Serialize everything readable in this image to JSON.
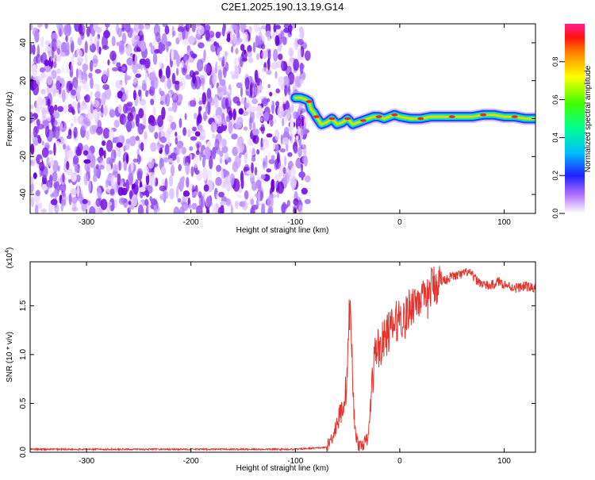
{
  "title": "C2E1.2025.190.13.19.G14",
  "colors": {
    "snr_line": "#e8322c",
    "spectrogram_noise": "#7000e0",
    "axis": "#000000"
  },
  "chart_data": [
    {
      "type": "heatmap",
      "xlabel": "Height of straight line (km)",
      "ylabel": "Frequency (Hz)",
      "xlim": [
        -354,
        130
      ],
      "ylim": [
        -50,
        50
      ],
      "xticks": [
        -300,
        -200,
        -100,
        0,
        100
      ],
      "xtick_labels": [
        "-300",
        "-200",
        "-100",
        "0",
        "100"
      ],
      "yticks": [
        -40,
        -20,
        0,
        20,
        40
      ],
      "ytick_labels": [
        "-40",
        "-20",
        "0",
        "20",
        "40"
      ],
      "noise_region_x": [
        -354,
        -88
      ],
      "signal_ridge": {
        "x": [
          -100,
          -95,
          -90,
          -87,
          -85,
          -82,
          -80,
          -75,
          -70,
          -65,
          -60,
          -55,
          -50,
          -45,
          -40,
          -35,
          -30,
          -25,
          -20,
          -15,
          -10,
          -5,
          0,
          10,
          20,
          30,
          40,
          50,
          60,
          70,
          80,
          90,
          100,
          110,
          120,
          130
        ],
        "y": [
          11,
          11,
          10,
          9,
          5,
          3,
          1,
          -3,
          -2,
          0,
          -3,
          -2,
          0,
          -3,
          -2,
          -1,
          0,
          1,
          1,
          0,
          1,
          2,
          1,
          0,
          0,
          1,
          1,
          1,
          1,
          1,
          2,
          2,
          1,
          1,
          0,
          0
        ]
      },
      "colorbar": {
        "label": "Normalized spectral amplitude",
        "range": [
          0,
          1
        ],
        "ticks": [
          0,
          0.2,
          0.4,
          0.6,
          0.8
        ],
        "tick_labels": [
          "0.0",
          "0.2",
          "0.4",
          "0.6",
          "0.8"
        ],
        "scheme": "rainbow"
      }
    },
    {
      "type": "line",
      "xlabel": "Height of straight line (km)",
      "ylabel": "SNR (10 * v/v)",
      "y_multiplier": "(x10",
      "y_multiplier_exp": "4",
      "y_multiplier_close": ")",
      "xlim": [
        -354,
        130
      ],
      "ylim": [
        0,
        1.95
      ],
      "xticks": [
        -300,
        -200,
        -100,
        0,
        100
      ],
      "xtick_labels": [
        "-300",
        "-200",
        "-100",
        "0",
        "100"
      ],
      "yticks": [
        0,
        0.5,
        1.0,
        1.5
      ],
      "ytick_labels": [
        "0.0",
        "0.5",
        "1.0",
        "1.5"
      ],
      "series": [
        {
          "x": [
            -354,
            -300,
            -250,
            -200,
            -150,
            -100,
            -70,
            -65,
            -60,
            -55,
            -52,
            -50,
            -48,
            -46,
            -44,
            -42,
            -40,
            -38,
            -35,
            -30,
            -28,
            -25,
            -22,
            -20,
            -15,
            -10,
            -5,
            0,
            5,
            10,
            15,
            20,
            25,
            30,
            40,
            50,
            60,
            65,
            70,
            75,
            80,
            85,
            90,
            95,
            100,
            110,
            120,
            130
          ],
          "y": [
            0.03,
            0.03,
            0.03,
            0.03,
            0.03,
            0.03,
            0.05,
            0.15,
            0.3,
            0.45,
            0.6,
            0.9,
            1.5,
            1.1,
            0.4,
            0.2,
            0.08,
            0.06,
            0.08,
            0.15,
            0.5,
            0.9,
            1.1,
            1.05,
            1.15,
            1.25,
            1.3,
            1.4,
            1.35,
            1.5,
            1.55,
            1.6,
            1.5,
            1.7,
            1.75,
            1.8,
            1.82,
            1.85,
            1.8,
            1.75,
            1.72,
            1.7,
            1.72,
            1.75,
            1.72,
            1.68,
            1.7,
            1.68
          ]
        }
      ]
    }
  ]
}
